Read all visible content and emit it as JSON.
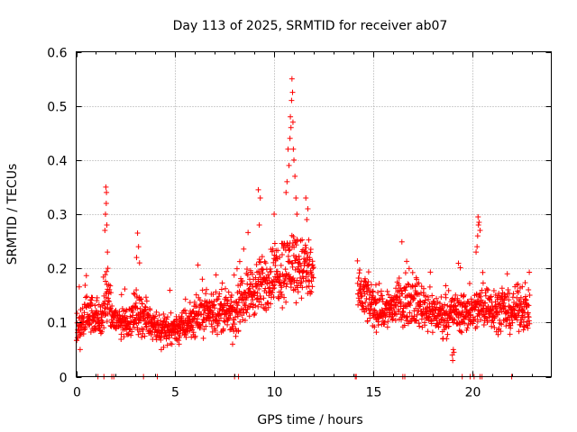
{
  "chart_data": {
    "type": "scatter",
    "title": "Day 113 of 2025, SRMTID for receiver ab07",
    "xlabel": "GPS time / hours",
    "ylabel": "SRMTID / TECUs",
    "xlim": [
      0,
      24
    ],
    "ylim": [
      0,
      0.6
    ],
    "x_ticks": [
      "0",
      "5",
      "10",
      "15",
      "20"
    ],
    "y_ticks": [
      "0",
      "0.1",
      "0.2",
      "0.3",
      "0.4",
      "0.5",
      "0.6"
    ],
    "x_tick_values": [
      0,
      5,
      10,
      15,
      20
    ],
    "y_tick_values": [
      0,
      0.1,
      0.2,
      0.3,
      0.4,
      0.5,
      0.6
    ],
    "grid": true,
    "marker": "plus",
    "marker_color": "#ff0000",
    "gap_hours": [
      12.0,
      14.2
    ],
    "series": [
      {
        "name": "SRMTID",
        "profile": [
          [
            0.0,
            0.08
          ],
          [
            0.3,
            0.1
          ],
          [
            0.6,
            0.12
          ],
          [
            1.0,
            0.11
          ],
          [
            1.3,
            0.1
          ],
          [
            1.5,
            0.15
          ],
          [
            1.8,
            0.11
          ],
          [
            2.2,
            0.1
          ],
          [
            2.6,
            0.1
          ],
          [
            3.0,
            0.12
          ],
          [
            3.4,
            0.11
          ],
          [
            3.8,
            0.1
          ],
          [
            4.2,
            0.09
          ],
          [
            4.6,
            0.085
          ],
          [
            5.0,
            0.09
          ],
          [
            5.5,
            0.095
          ],
          [
            6.0,
            0.11
          ],
          [
            6.5,
            0.12
          ],
          [
            7.0,
            0.12
          ],
          [
            7.5,
            0.12
          ],
          [
            8.0,
            0.11
          ],
          [
            8.5,
            0.15
          ],
          [
            9.0,
            0.16
          ],
          [
            9.5,
            0.17
          ],
          [
            10.0,
            0.19
          ],
          [
            10.5,
            0.2
          ],
          [
            11.0,
            0.21
          ],
          [
            11.5,
            0.2
          ],
          [
            12.0,
            0.19
          ],
          [
            14.2,
            0.15
          ],
          [
            14.5,
            0.15
          ],
          [
            15.0,
            0.13
          ],
          [
            15.5,
            0.12
          ],
          [
            16.0,
            0.13
          ],
          [
            16.5,
            0.14
          ],
          [
            17.0,
            0.14
          ],
          [
            17.5,
            0.13
          ],
          [
            18.0,
            0.12
          ],
          [
            18.5,
            0.11
          ],
          [
            19.0,
            0.12
          ],
          [
            19.5,
            0.12
          ],
          [
            20.0,
            0.12
          ],
          [
            20.5,
            0.13
          ],
          [
            21.0,
            0.13
          ],
          [
            21.5,
            0.12
          ],
          [
            22.0,
            0.12
          ],
          [
            22.5,
            0.13
          ],
          [
            22.9,
            0.12
          ]
        ],
        "spikes": [
          [
            1.5,
            0.35
          ],
          [
            1.52,
            0.32
          ],
          [
            1.48,
            0.3
          ],
          [
            1.55,
            0.28
          ],
          [
            1.45,
            0.27
          ],
          [
            1.53,
            0.34
          ],
          [
            1.58,
            0.23
          ],
          [
            1.6,
            0.2
          ],
          [
            3.1,
            0.265
          ],
          [
            3.15,
            0.24
          ],
          [
            3.05,
            0.22
          ],
          [
            3.2,
            0.21
          ],
          [
            9.2,
            0.345
          ],
          [
            9.3,
            0.33
          ],
          [
            9.25,
            0.28
          ],
          [
            10.0,
            0.3
          ],
          [
            10.7,
            0.42
          ],
          [
            10.75,
            0.39
          ],
          [
            10.8,
            0.44
          ],
          [
            10.82,
            0.48
          ],
          [
            10.85,
            0.46
          ],
          [
            10.88,
            0.51
          ],
          [
            10.9,
            0.55
          ],
          [
            10.93,
            0.525
          ],
          [
            10.95,
            0.47
          ],
          [
            10.97,
            0.42
          ],
          [
            11.0,
            0.4
          ],
          [
            11.05,
            0.37
          ],
          [
            11.1,
            0.33
          ],
          [
            11.15,
            0.3
          ],
          [
            10.65,
            0.36
          ],
          [
            10.6,
            0.34
          ],
          [
            11.6,
            0.33
          ],
          [
            11.7,
            0.31
          ],
          [
            11.65,
            0.29
          ],
          [
            20.3,
            0.295
          ],
          [
            20.35,
            0.285
          ],
          [
            20.32,
            0.28
          ],
          [
            20.28,
            0.26
          ],
          [
            20.25,
            0.24
          ],
          [
            20.4,
            0.27
          ],
          [
            20.2,
            0.23
          ]
        ],
        "lows": [
          [
            19.0,
            0.04
          ],
          [
            19.02,
            0.03
          ],
          [
            19.05,
            0.05
          ],
          [
            19.08,
            0.045
          ],
          [
            0.2,
            0.05
          ],
          [
            4.3,
            0.05
          ],
          [
            5.2,
            0.06
          ],
          [
            7.9,
            0.06
          ]
        ],
        "zero_markers": [
          1.1,
          1.4,
          1.8,
          1.9,
          3.4,
          4.1,
          8.0,
          8.2,
          14.1,
          14.15,
          16.5,
          16.6,
          19.5,
          19.9,
          20.1,
          20.4,
          20.5,
          22.0
        ]
      }
    ]
  }
}
